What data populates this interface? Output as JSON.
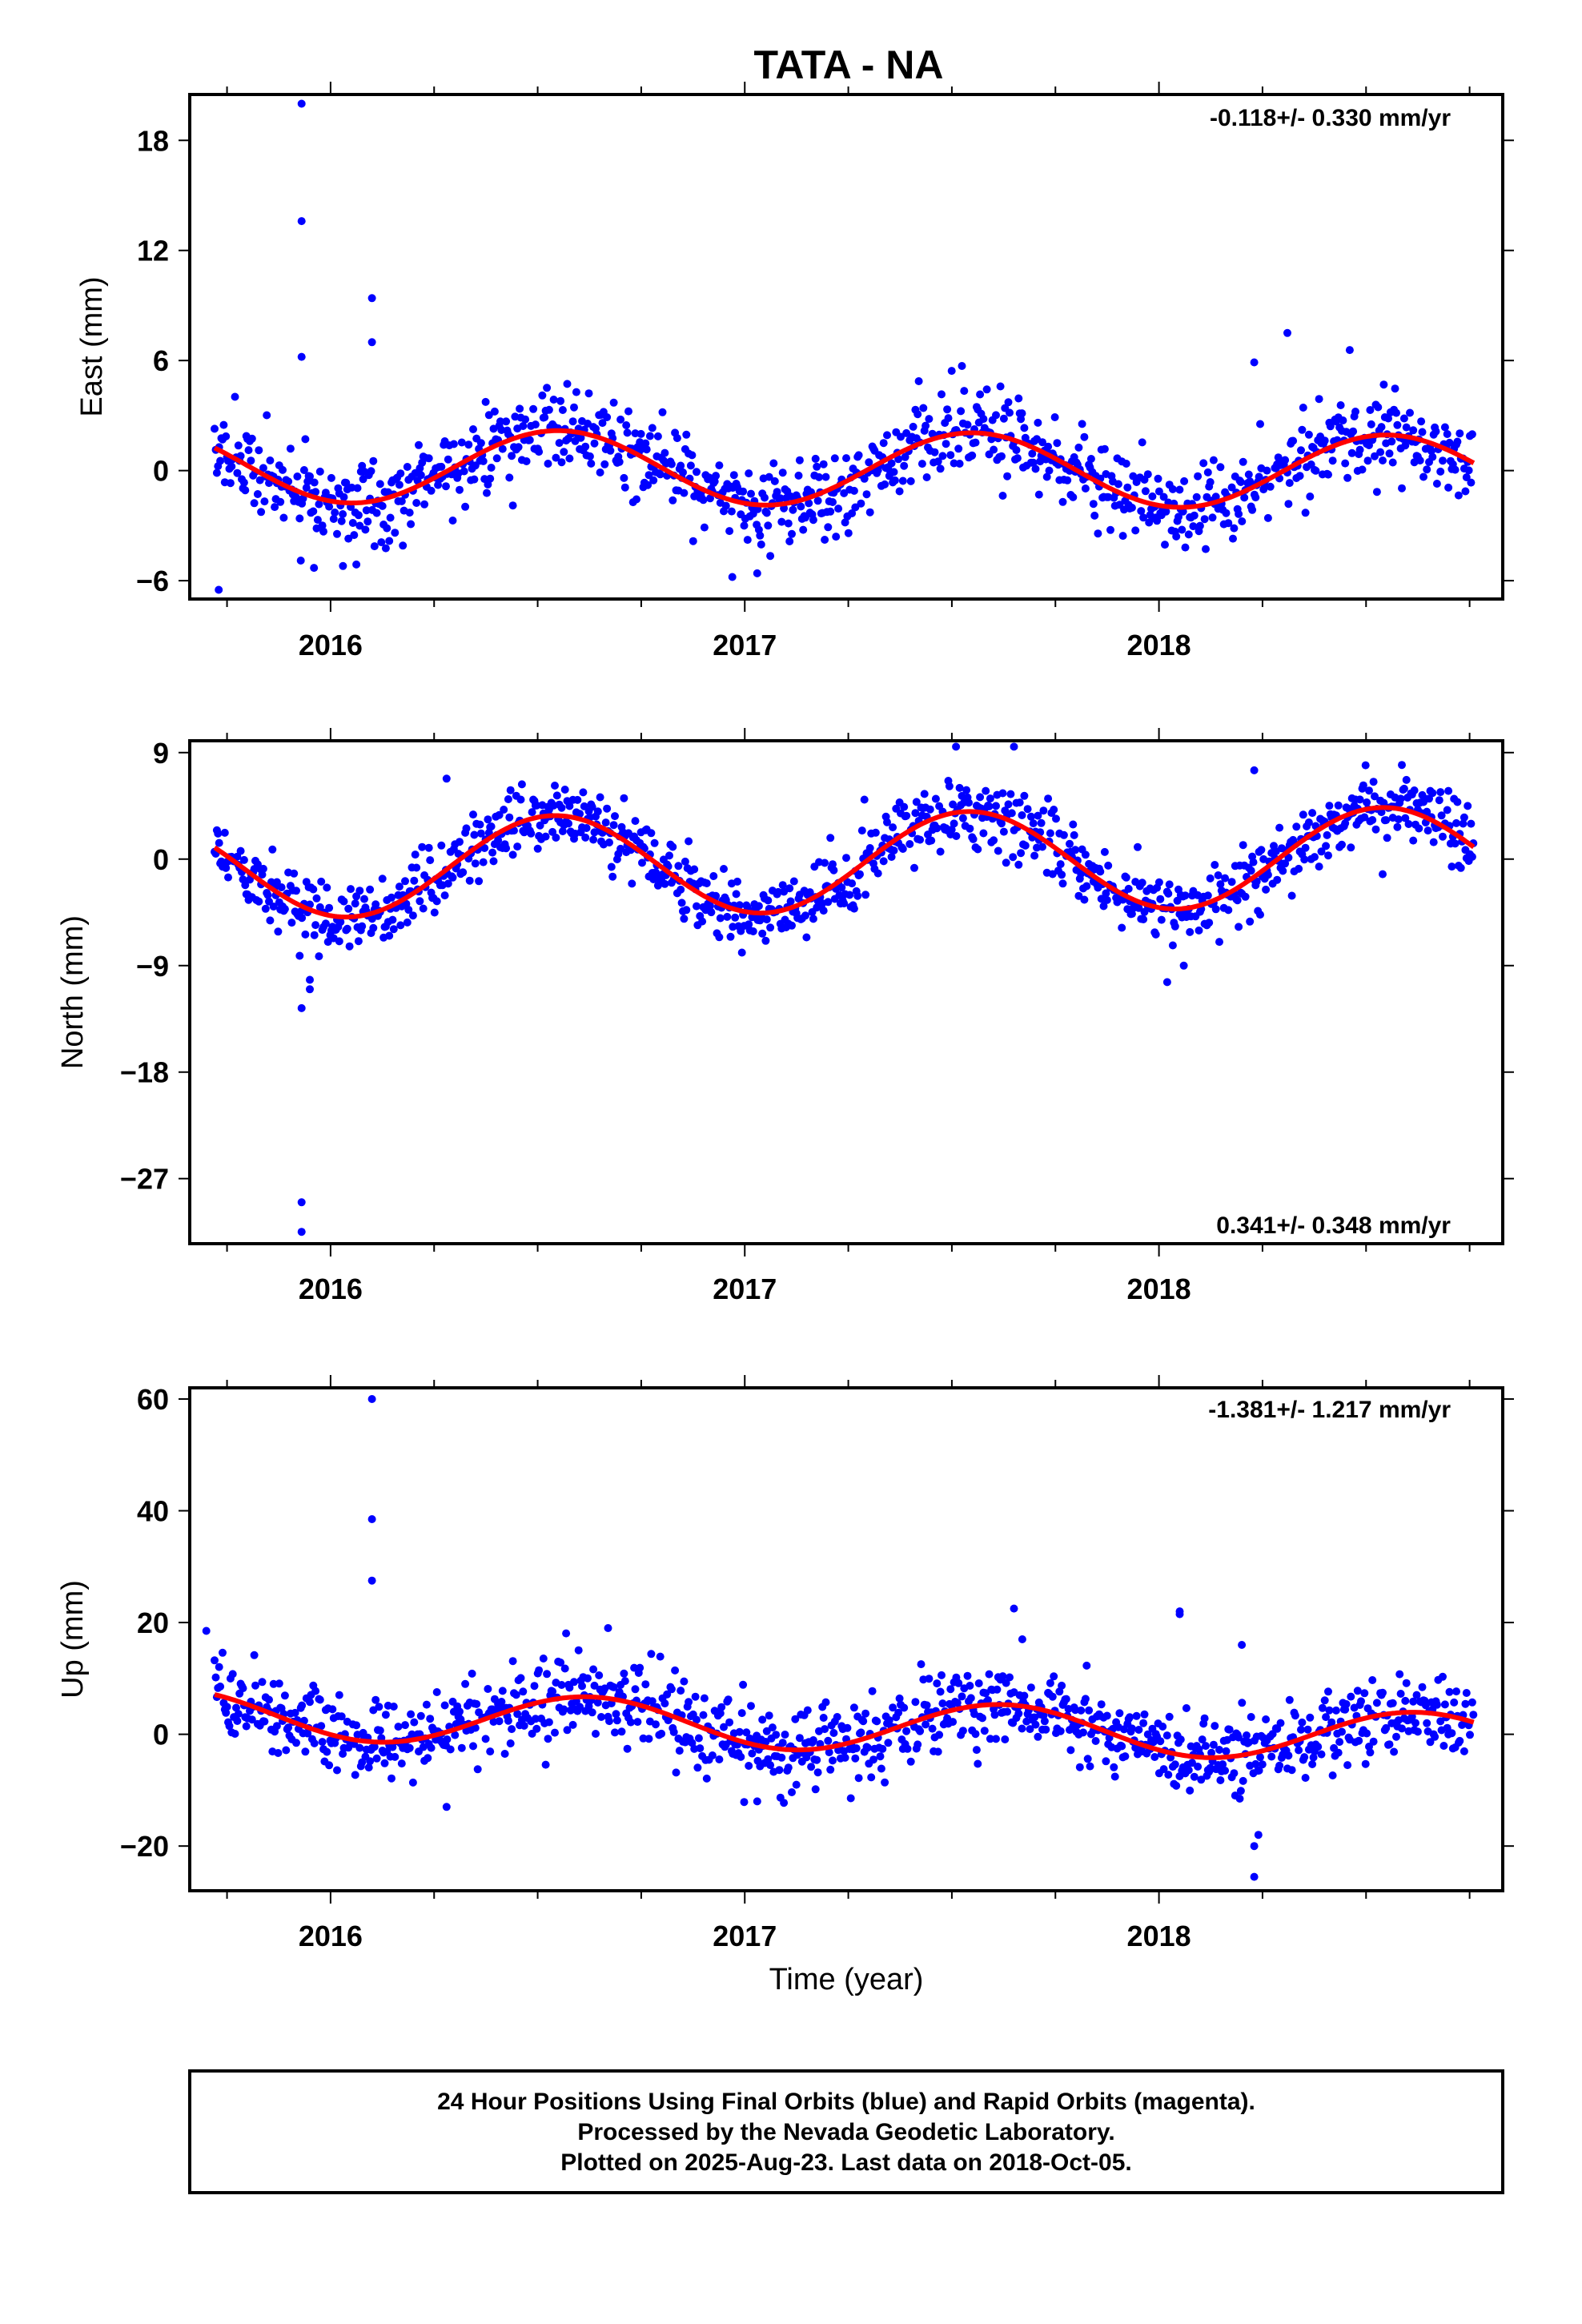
{
  "title": "TATA - NA",
  "colors": {
    "points": "#0000ff",
    "trend": "#ff0000",
    "frame": "#000000"
  },
  "chart_data": [
    {
      "type": "scatter",
      "panel": "east",
      "ylabel": "East (mm)",
      "xlabel": "",
      "rate_text": "-0.118+/- 0.330 mm/yr",
      "rate_position": "top-right",
      "xlim": [
        2015.66,
        2018.83
      ],
      "ylim": [
        -7,
        20.5
      ],
      "yticks": [
        18,
        12,
        6,
        0,
        -6
      ],
      "ytick_labels": [
        "18",
        "12",
        "6",
        "0",
        "−6"
      ],
      "xticks": [
        2016,
        2017,
        2018
      ],
      "xtick_labels": [
        "2016",
        "2017",
        "2018"
      ],
      "model": {
        "offset": 0.1,
        "rate": -0.118,
        "amplitude": 2.0,
        "phase_year": 2016.55
      },
      "noise_sd": 1.15,
      "outliers": [
        [
          2015.93,
          20.0
        ],
        [
          2015.93,
          13.6
        ],
        [
          2015.93,
          6.2
        ],
        [
          2016.1,
          9.4
        ],
        [
          2016.1,
          7.0
        ],
        [
          2018.23,
          5.9
        ],
        [
          2018.31,
          7.5
        ],
        [
          2015.73,
          -6.5
        ],
        [
          2016.97,
          -5.8
        ],
        [
          2017.03,
          -5.6
        ],
        [
          2015.96,
          -5.3
        ],
        [
          2016.03,
          -5.2
        ]
      ]
    },
    {
      "type": "scatter",
      "panel": "north",
      "ylabel": "North (mm)",
      "xlabel": "",
      "rate_text": "0.341+/- 0.348 mm/yr",
      "rate_position": "bottom-right",
      "xlim": [
        2015.66,
        2018.83
      ],
      "ylim": [
        -32.5,
        10
      ],
      "yticks": [
        9,
        0,
        -9,
        -18,
        -27
      ],
      "ytick_labels": [
        "9",
        "0",
        "−9",
        "−18",
        "−27"
      ],
      "xticks": [
        2016,
        2017,
        2018
      ],
      "xtick_labels": [
        "2016",
        "2017",
        "2018"
      ],
      "model": {
        "offset": -0.3,
        "rate": 0.341,
        "amplitude": 4.2,
        "phase_year": 2016.54
      },
      "noise_sd": 1.4,
      "outliers": [
        [
          2015.93,
          -12.6
        ],
        [
          2015.95,
          -11.0
        ],
        [
          2015.95,
          -10.2
        ],
        [
          2015.93,
          -29.0
        ],
        [
          2015.93,
          -31.5
        ],
        [
          2017.51,
          9.5
        ],
        [
          2017.65,
          9.5
        ],
        [
          2018.02,
          -10.4
        ],
        [
          2018.06,
          -9.0
        ],
        [
          2016.28,
          6.8
        ],
        [
          2018.23,
          7.5
        ]
      ]
    },
    {
      "type": "scatter",
      "panel": "up",
      "ylabel": "Up (mm)",
      "xlabel": "Time (year)",
      "rate_text": "-1.381+/- 1.217 mm/yr",
      "rate_position": "top-right",
      "xlim": [
        2015.66,
        2018.83
      ],
      "ylim": [
        -28,
        62
      ],
      "yticks": [
        60,
        40,
        20,
        0,
        -20
      ],
      "ytick_labels": [
        "60",
        "40",
        "20",
        "0",
        "−20"
      ],
      "xticks": [
        2016,
        2017,
        2018
      ],
      "xtick_labels": [
        "2016",
        "2017",
        "2018"
      ],
      "model": {
        "offset": 1.5,
        "rate": -1.381,
        "amplitude": 4.4,
        "phase_year": 2016.62
      },
      "noise_sd": 3.6,
      "outliers": [
        [
          2016.1,
          60.0
        ],
        [
          2016.1,
          38.5
        ],
        [
          2016.1,
          27.5
        ],
        [
          2017.65,
          22.5
        ],
        [
          2018.05,
          22.0
        ],
        [
          2018.05,
          21.5
        ],
        [
          2018.2,
          16.0
        ],
        [
          2016.67,
          19.0
        ],
        [
          2015.7,
          18.5
        ],
        [
          2017.67,
          17.0
        ],
        [
          2018.23,
          -25.5
        ],
        [
          2018.23,
          -20.0
        ],
        [
          2018.24,
          -18.0
        ],
        [
          2016.28,
          -13.0
        ],
        [
          2017.03,
          -12.0
        ]
      ]
    }
  ],
  "footer": {
    "line1": "24 Hour Positions Using Final Orbits (blue) and Rapid Orbits (magenta).",
    "line2": "Processed by the Nevada Geodetic Laboratory.",
    "line3": "Plotted on 2025-Aug-23. Last data on 2018-Oct-05."
  }
}
